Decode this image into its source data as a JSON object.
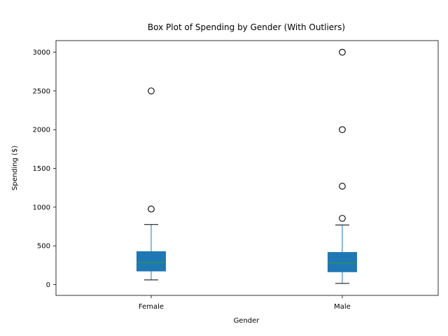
{
  "chart_data": {
    "type": "box",
    "title": "Box Plot of Spending by Gender (With Outliers)",
    "xlabel": "Gender",
    "ylabel": "Spending ($)",
    "ylim": [
      -140,
      3150
    ],
    "yticks": [
      0,
      500,
      1000,
      1500,
      2000,
      2500,
      3000
    ],
    "grid": false,
    "colors": {
      "box": "#1f77b4",
      "median": "#2ca02c",
      "whisker": "#000000"
    },
    "groups": [
      {
        "category": "Female",
        "whisker_low": 60,
        "q1": 175,
        "median": 285,
        "q3": 425,
        "whisker_high": 775,
        "outliers": [
          975,
          2500
        ]
      },
      {
        "category": "Male",
        "whisker_low": 15,
        "q1": 165,
        "median": 280,
        "q3": 415,
        "whisker_high": 770,
        "outliers": [
          855,
          1270,
          2000,
          3000
        ]
      }
    ]
  }
}
